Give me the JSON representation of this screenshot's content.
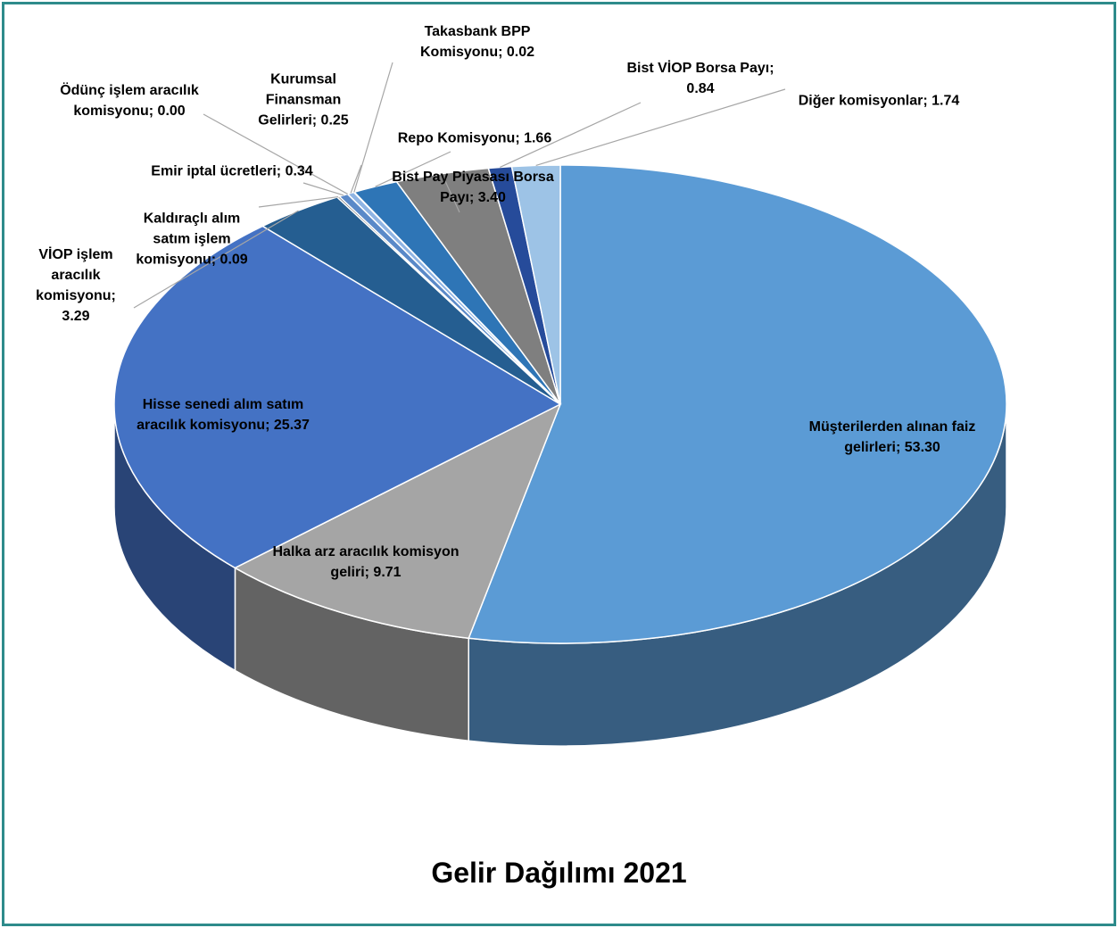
{
  "chart_data": {
    "type": "pie",
    "title": "Gelir Dağılımı 2021",
    "values": [
      53.3,
      9.71,
      25.37,
      3.29,
      0.09,
      0.34,
      0.0,
      0.25,
      0.02,
      1.66,
      3.4,
      0.84,
      1.74
    ],
    "value_labels": [
      "Müşterilerden alınan faiz gelirleri; 53.30",
      "Halka arz aracılık komisyon geliri; 9.71",
      "Hisse senedi alım satım aracılık komisyonu; 25.37",
      "VİOP işlem aracılık komisyonu; 3.29",
      "Kaldıraçlı alım satım işlem komisyonu; 0.09",
      "Emir iptal ücretleri; 0.34",
      "Ödünç işlem aracılık komisyonu; 0.00",
      "Kurumsal Finansman Gelirleri; 0.25",
      "Takasbank BPP Komisyonu; 0.02",
      "Repo Komisyonu; 1.66",
      "Bist Pay Piyasası Borsa Payı; 3.40",
      "Bist VİOP Borsa Payı; 0.84",
      "Diğer komisyonlar; 1.74"
    ],
    "colors": [
      "#5b9bd5",
      "#a5a5a5",
      "#4472c4",
      "#255e91",
      "#636363",
      "#5a89c8",
      "#9e9e9e",
      "#8fb4e3",
      "#264478",
      "#2e75b6",
      "#7f7f7f",
      "#264b9a",
      "#9dc3e6"
    ]
  }
}
